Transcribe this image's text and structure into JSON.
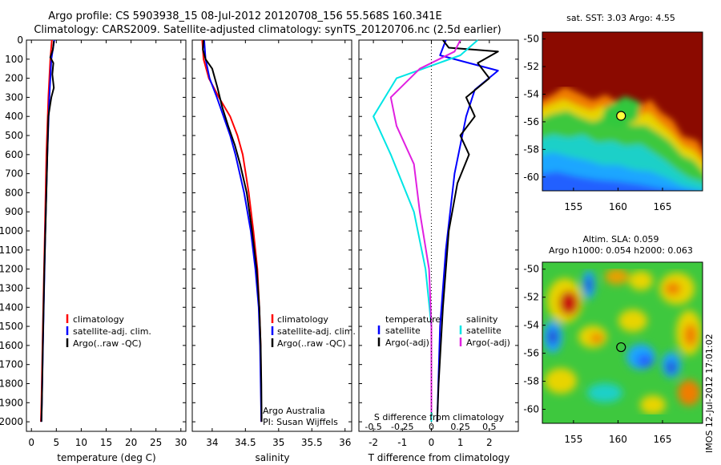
{
  "header": {
    "line1": "Argo profile: CS 5903938_15 08-Jul-2012 20120708_156 55.568S 160.341E",
    "line2": "Climatology: CARS2009. Satellite-adjusted climatology: synTS_20120706.nc (2.5d earlier)"
  },
  "colors": {
    "climatology": "#ff0000",
    "satellite": "#0000ff",
    "argo": "#000000",
    "sat_diff": "#00e5e5",
    "argo_s_diff": "#e020e0"
  },
  "chart_data": [
    {
      "type": "line",
      "panel": "temperature",
      "xlabel": "temperature (deg C)",
      "ylim": [
        2050,
        0
      ],
      "xlim": [
        -1,
        31
      ],
      "xticks": [
        0,
        5,
        10,
        15,
        20,
        25,
        30
      ],
      "yticks": [
        0,
        100,
        200,
        300,
        400,
        500,
        600,
        700,
        800,
        900,
        1000,
        1100,
        1200,
        1300,
        1400,
        1500,
        1600,
        1700,
        1800,
        1900,
        2000
      ],
      "legend": [
        "climatology",
        "satellite-adj. clim.",
        "Argo(..raw -QC)"
      ],
      "series": [
        {
          "name": "climatology",
          "color": "#ff0000",
          "points": [
            [
              4.1,
              0
            ],
            [
              3.8,
              100
            ],
            [
              3.4,
              300
            ],
            [
              3.0,
              600
            ],
            [
              2.7,
              1000
            ],
            [
              2.3,
              1500
            ],
            [
              2.0,
              1900
            ],
            [
              1.9,
              2000
            ]
          ]
        },
        {
          "name": "satellite-adj. clim.",
          "color": "#0000ff",
          "points": [
            [
              4.6,
              0
            ],
            [
              4.0,
              100
            ],
            [
              3.6,
              300
            ],
            [
              3.2,
              600
            ],
            [
              2.8,
              1000
            ],
            [
              2.4,
              1500
            ],
            [
              2.1,
              1900
            ],
            [
              2.0,
              2000
            ]
          ]
        },
        {
          "name": "Argo(..raw -QC)",
          "color": "#000000",
          "points": [
            [
              4.5,
              5
            ],
            [
              4.3,
              50
            ],
            [
              3.8,
              90
            ],
            [
              4.4,
              120
            ],
            [
              4.2,
              180
            ],
            [
              4.5,
              250
            ],
            [
              4.0,
              300
            ],
            [
              3.7,
              350
            ],
            [
              3.4,
              400
            ],
            [
              3.2,
              600
            ],
            [
              2.9,
              900
            ],
            [
              2.6,
              1200
            ],
            [
              2.3,
              1600
            ],
            [
              2.1,
              1900
            ],
            [
              2.0,
              2000
            ]
          ]
        }
      ]
    },
    {
      "type": "line",
      "panel": "salinity",
      "xlabel": "salinity",
      "ylim": [
        2050,
        0
      ],
      "xlim": [
        33.7,
        36.1
      ],
      "xticks": [
        34,
        34.5,
        35,
        35.5,
        36
      ],
      "legend": [
        "climatology",
        "satellite-adj. clim.",
        "Argo(..raw -QC)"
      ],
      "annotation": [
        "Argo Australia",
        "PI: Susan Wijffels"
      ],
      "series": [
        {
          "name": "climatology",
          "color": "#ff0000",
          "points": [
            [
              33.85,
              0
            ],
            [
              33.87,
              100
            ],
            [
              33.95,
              200
            ],
            [
              34.1,
              300
            ],
            [
              34.27,
              400
            ],
            [
              34.38,
              500
            ],
            [
              34.46,
              600
            ],
            [
              34.55,
              800
            ],
            [
              34.62,
              1000
            ],
            [
              34.68,
              1200
            ],
            [
              34.71,
              1400
            ],
            [
              34.73,
              1600
            ],
            [
              34.735,
              1800
            ],
            [
              34.74,
              2000
            ]
          ]
        },
        {
          "name": "satellite-adj. clim.",
          "color": "#0000ff",
          "points": [
            [
              33.88,
              0
            ],
            [
              33.9,
              100
            ],
            [
              33.96,
              200
            ],
            [
              34.07,
              300
            ],
            [
              34.17,
              400
            ],
            [
              34.27,
              500
            ],
            [
              34.35,
              600
            ],
            [
              34.48,
              800
            ],
            [
              34.58,
              1000
            ],
            [
              34.65,
              1200
            ],
            [
              34.7,
              1400
            ],
            [
              34.72,
              1600
            ],
            [
              34.73,
              1800
            ],
            [
              34.74,
              2000
            ]
          ]
        },
        {
          "name": "Argo(..raw -QC)",
          "color": "#000000",
          "points": [
            [
              33.87,
              0
            ],
            [
              33.86,
              50
            ],
            [
              33.9,
              100
            ],
            [
              34.0,
              150
            ],
            [
              34.08,
              250
            ],
            [
              34.15,
              350
            ],
            [
              34.24,
              450
            ],
            [
              34.34,
              550
            ],
            [
              34.42,
              650
            ],
            [
              34.52,
              800
            ],
            [
              34.6,
              1000
            ],
            [
              34.67,
              1200
            ],
            [
              34.71,
              1400
            ],
            [
              34.73,
              1600
            ],
            [
              34.74,
              1800
            ],
            [
              34.745,
              2000
            ]
          ]
        }
      ]
    },
    {
      "type": "line",
      "panel": "difference",
      "xlabel": "T difference from climatology",
      "xlabel2": "S difference from climatology",
      "ylim": [
        2050,
        0
      ],
      "xlim": [
        -2.5,
        3.0
      ],
      "xticks": [
        -2,
        -1,
        0,
        1,
        2
      ],
      "xticks2": [
        -0.5,
        -0.25,
        0,
        0.25,
        0.5
      ],
      "legend_titles": [
        "temperature",
        "salinity"
      ],
      "legend": [
        "satellite",
        "Argo(-adj)",
        "satellite",
        "Argo(-adj)"
      ],
      "series": [
        {
          "name": "temperature satellite",
          "color": "#0000ff",
          "points": [
            [
              0.5,
              0
            ],
            [
              0.3,
              80
            ],
            [
              1.3,
              120
            ],
            [
              2.3,
              160
            ],
            [
              1.5,
              260
            ],
            [
              1.2,
              400
            ],
            [
              0.8,
              700
            ],
            [
              0.5,
              1100
            ],
            [
              0.3,
              1500
            ],
            [
              0.2,
              2000
            ]
          ]
        },
        {
          "name": "temperature Argo(-adj)",
          "color": "#000000",
          "points": [
            [
              0.4,
              0
            ],
            [
              0.6,
              40
            ],
            [
              2.3,
              60
            ],
            [
              1.6,
              120
            ],
            [
              2.0,
              200
            ],
            [
              1.2,
              300
            ],
            [
              1.5,
              400
            ],
            [
              1.0,
              500
            ],
            [
              1.3,
              600
            ],
            [
              0.9,
              750
            ],
            [
              0.6,
              1000
            ],
            [
              0.4,
              1400
            ],
            [
              0.25,
              1800
            ],
            [
              0.2,
              2000
            ]
          ]
        },
        {
          "name": "salinity satellite",
          "color": "#00e5e5",
          "points": [
            [
              0.4,
              0
            ],
            [
              0.25,
              80
            ],
            [
              -0.3,
              200
            ],
            [
              -0.5,
              400
            ],
            [
              -0.35,
              600
            ],
            [
              -0.15,
              900
            ],
            [
              -0.05,
              1200
            ],
            [
              0.0,
              1500
            ],
            [
              0.0,
              2000
            ]
          ]
        },
        {
          "name": "salinity Argo(-adj)",
          "color": "#e020e0",
          "points": [
            [
              0.25,
              0
            ],
            [
              0.2,
              60
            ],
            [
              -0.1,
              150
            ],
            [
              -0.35,
              300
            ],
            [
              -0.3,
              450
            ],
            [
              -0.15,
              650
            ],
            [
              -0.1,
              900
            ],
            [
              -0.02,
              1200
            ],
            [
              0.0,
              1500
            ],
            [
              0.0,
              1950
            ]
          ]
        }
      ]
    },
    {
      "type": "heatmap",
      "panel": "sst-map",
      "title": "sat. SST: 3.03 Argo: 4.55",
      "xlim": [
        151.5,
        169.5
      ],
      "ylim": [
        -61,
        -49.5
      ],
      "xticks": [
        155,
        160,
        165
      ],
      "yticks": [
        -50,
        -52,
        -54,
        -56,
        -58,
        -60
      ],
      "marker": {
        "lon": 160.341,
        "lat": -55.568
      }
    },
    {
      "type": "heatmap",
      "panel": "sla-map",
      "title": "Altim. SLA: 0.059",
      "subtitle": "Argo h1000: 0.054 h2000: 0.063",
      "xlim": [
        151.5,
        169.5
      ],
      "ylim": [
        -61,
        -49.5
      ],
      "xticks": [
        155,
        160,
        165
      ],
      "yticks": [
        -50,
        -52,
        -54,
        -56,
        -58,
        -60
      ],
      "marker": {
        "lon": 160.341,
        "lat": -55.568
      }
    }
  ],
  "stamp": "IMOS 12-Jul-2012 17:01:02"
}
